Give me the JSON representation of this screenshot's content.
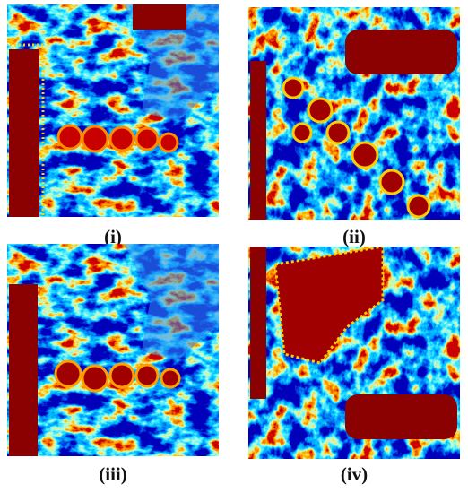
{
  "figure": {
    "panels": [
      {
        "caption": "(i)"
      },
      {
        "caption": "(ii)"
      },
      {
        "caption": "(iii)"
      },
      {
        "caption": "(iv)"
      }
    ]
  }
}
